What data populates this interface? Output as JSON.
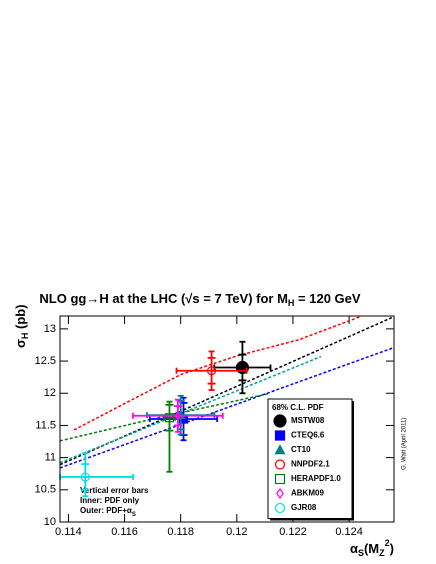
{
  "chart_data": {
    "type": "scatter",
    "title": "NLO gg→H at the LHC (√s = 7 TeV) for M",
    "title_sub": "H",
    "title_end": " = 120 GeV",
    "y_label": "σ",
    "y_label_sub": "H",
    "y_label_end": " (pb)",
    "x_label": "α",
    "x_label_sub": "S",
    "x_label_mid": "(M",
    "x_label_sub2": "Z",
    "x_label_sup": "2",
    "x_label_end": ")",
    "xlim": [
      0.1137,
      0.1256
    ],
    "xticks": [
      0.114,
      0.116,
      0.118,
      0.12,
      0.122,
      0.124
    ],
    "ylim": [
      10,
      13.2
    ],
    "yticks": [
      10,
      10.5,
      11,
      11.5,
      12,
      12.5,
      13
    ],
    "legend_title": "68% C.L. PDF",
    "note": [
      "Vertical error bars",
      "Inner: PDF only",
      "Outer: PDF+α"
    ],
    "note_sub": "S",
    "credit": "G. Watt   (April 2011)",
    "series": [
      {
        "name": "MSTW08",
        "color": "#000000",
        "marker": "filled-circle",
        "x": [
          0.1202
        ],
        "y": [
          12.4
        ],
        "x_err_minus": [
          0.001
        ],
        "x_err_plus": [
          0.001
        ],
        "y_err_minus": [
          0.4
        ],
        "y_err_plus": [
          0.4
        ],
        "y_err_inner": [
          0.2
        ]
      },
      {
        "name": "CTEQ6.6",
        "color": "#0000ff",
        "marker": "filled-square",
        "x": [
          0.1181
        ],
        "y": [
          11.6
        ],
        "x_err_minus": [
          0.0012
        ],
        "x_err_plus": [
          0.0012
        ],
        "y_err_minus": [
          0.33
        ],
        "y_err_plus": [
          0.33
        ],
        "y_err_inner": [
          0.25
        ]
      },
      {
        "name": "CT10",
        "color": "#008080",
        "marker": "filled-triangle",
        "x": [
          0.118
        ],
        "y": [
          11.66
        ],
        "x_err_minus": [
          0.0012
        ],
        "x_err_plus": [
          0.0012
        ],
        "y_err_minus": [
          0.3
        ],
        "y_err_plus": [
          0.3
        ],
        "y_err_inner": [
          0.22
        ]
      },
      {
        "name": "NNPDF2.1",
        "color": "#ff0000",
        "marker": "open-circle",
        "x": [
          0.1191
        ],
        "y": [
          12.35
        ],
        "x_err_minus": [
          0.00125
        ],
        "x_err_plus": [
          0.00125
        ],
        "y_err_minus": [
          0.3
        ],
        "y_err_plus": [
          0.3
        ],
        "y_err_inner": [
          0.2
        ]
      },
      {
        "name": "HERAPDF1.0",
        "color": "#008000",
        "marker": "open-square",
        "x": [
          0.1176
        ],
        "y": [
          11.62
        ],
        "x_err_minus": [
          0.0002
        ],
        "x_err_plus": [
          0.0002
        ],
        "y_err_minus": [
          0.84
        ],
        "y_err_plus": [
          0.25
        ],
        "y_err_inner": [
          0.2
        ]
      },
      {
        "name": "ABKM09",
        "color": "#ff00ff",
        "marker": "open-diamond",
        "x": [
          0.1179
        ],
        "y": [
          11.65
        ],
        "x_err_minus": [
          0.0016
        ],
        "x_err_plus": [
          0.0016
        ],
        "y_err_minus": [
          0.25
        ],
        "y_err_plus": [
          0.25
        ],
        "y_err_inner": [
          0.15
        ]
      },
      {
        "name": "GJR08",
        "color": "#00e0e0",
        "marker": "open-circle",
        "x": [
          0.1146
        ],
        "y": [
          10.7
        ],
        "x_err_minus": [
          0.0009
        ],
        "x_err_plus": [
          0.0017
        ],
        "y_err_minus": [
          0.3
        ],
        "y_err_plus": [
          0.37
        ],
        "y_err_inner": [
          0.2
        ]
      }
    ],
    "curves": [
      {
        "color": "#000000",
        "x": [
          0.1137,
          0.1256
        ],
        "y": [
          10.89,
          13.19
        ]
      },
      {
        "color": "#ff0000",
        "x": [
          0.1142,
          0.116,
          0.118,
          0.12,
          0.1222,
          0.1244
        ],
        "y": [
          11.43,
          11.84,
          12.29,
          12.58,
          12.83,
          13.19
        ]
      },
      {
        "color": "#0000ff",
        "x": [
          0.1137,
          0.1256
        ],
        "y": [
          10.84,
          12.71
        ]
      },
      {
        "color": "#00a0a0",
        "x": [
          0.1137,
          0.123
        ],
        "y": [
          10.92,
          12.57
        ]
      },
      {
        "color": "#008000",
        "x": [
          0.1137,
          0.1169,
          0.1211
        ],
        "y": [
          11.26,
          11.59,
          11.99
        ]
      }
    ]
  }
}
